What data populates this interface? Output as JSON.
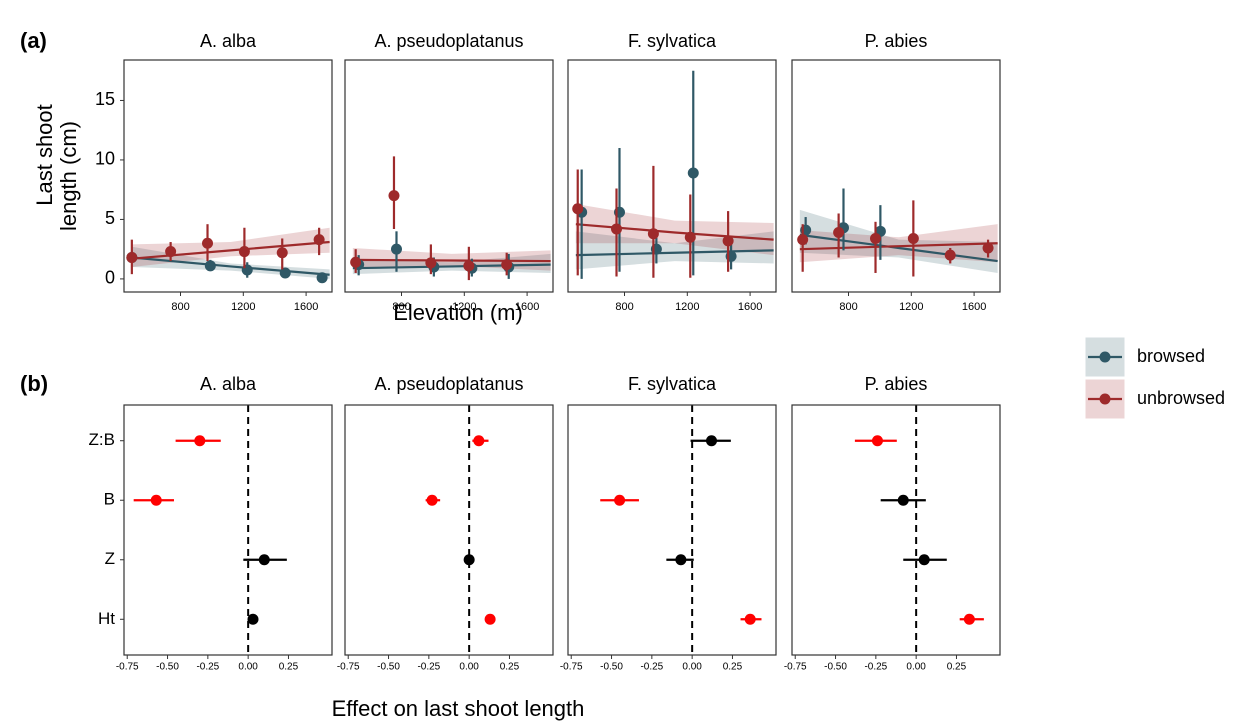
{
  "chart_data": [
    {
      "type": "line",
      "panel_label": "(a)",
      "x_label": "Elevation (m)",
      "y_label": [
        "Last shoot",
        "length (cm)"
      ],
      "xlim": [
        440,
        1765
      ],
      "xticks": [
        800,
        1200,
        1600
      ],
      "ylim": [
        -1.1,
        18.4
      ],
      "yticks": [
        0,
        5,
        10,
        15
      ],
      "facets": [
        {
          "title": "A. alba",
          "series": [
            {
              "name": "browsed",
              "color": "#2f5866",
              "x": [
                490,
                990,
                1225,
                1467,
                1702
              ],
              "values": [
                1.8,
                1.1,
                0.75,
                0.5,
                0.1
              ],
              "err_low": [
                1.4,
                0.7,
                0.1,
                0.3,
                0.0
              ],
              "err_high": [
                2.3,
                1.6,
                1.4,
                0.8,
                0.2
              ],
              "fit_x": [
                490,
                1120,
                1750
              ],
              "fit_values": [
                1.8,
                1.05,
                0.35
              ],
              "fit_low": [
                1.0,
                0.7,
                0.0
              ],
              "fit_high": [
                2.7,
                1.3,
                0.8
              ]
            },
            {
              "name": "unbrowsed",
              "color": "#9e2a2b",
              "x": [
                490,
                737,
                972,
                1207,
                1448,
                1683
              ],
              "values": [
                1.8,
                2.3,
                3.0,
                2.3,
                2.2,
                3.3
              ],
              "err_low": [
                0.4,
                1.5,
                1.5,
                0.9,
                0.8,
                2.0
              ],
              "err_high": [
                3.3,
                3.1,
                4.6,
                4.3,
                3.4,
                4.3
              ],
              "fit_x": [
                490,
                1120,
                1750
              ],
              "fit_values": [
                1.7,
                2.4,
                3.1
              ],
              "fit_low": [
                1.0,
                1.9,
                2.2
              ],
              "fit_high": [
                2.9,
                3.1,
                4.3
              ]
            }
          ]
        },
        {
          "title": "A. pseudoplatanus",
          "series": [
            {
              "name": "browsed",
              "color": "#2f5866",
              "x": [
                527,
                768,
                1006,
                1248,
                1483
              ],
              "values": [
                1.2,
                2.5,
                1.0,
                0.9,
                1.0
              ],
              "err_low": [
                0.3,
                0.6,
                0.2,
                0.2,
                0.0
              ],
              "err_high": [
                2.0,
                4.0,
                1.8,
                1.7,
                2.1
              ],
              "fit_x": [
                490,
                1120,
                1750
              ],
              "fit_values": [
                0.9,
                1.05,
                1.2
              ],
              "fit_low": [
                0.4,
                0.7,
                0.5
              ],
              "fit_high": [
                1.6,
                1.4,
                2.1
              ]
            },
            {
              "name": "unbrowsed",
              "color": "#9e2a2b",
              "x": [
                508,
                752,
                987,
                1229,
                1470
              ],
              "values": [
                1.4,
                7.0,
                1.35,
                1.1,
                1.2
              ],
              "err_low": [
                0.5,
                4.2,
                0.4,
                -0.1,
                0.3
              ],
              "err_high": [
                2.5,
                10.3,
                2.9,
                2.7,
                2.2
              ],
              "fit_x": [
                490,
                1120,
                1750
              ],
              "fit_values": [
                1.6,
                1.55,
                1.5
              ],
              "fit_low": [
                0.9,
                1.1,
                0.7
              ],
              "fit_high": [
                2.6,
                2.1,
                2.4
              ]
            }
          ]
        },
        {
          "title": "F. sylvatica",
          "series": [
            {
              "name": "browsed",
              "color": "#2f5866",
              "x": [
                527,
                768,
                1003,
                1238,
                1479
              ],
              "values": [
                5.6,
                5.6,
                2.5,
                8.9,
                1.9
              ],
              "err_low": [
                0.0,
                0.6,
                1.3,
                0.3,
                0.8
              ],
              "err_high": [
                9.2,
                11.0,
                3.5,
                17.5,
                3.0
              ],
              "fit_x": [
                490,
                1120,
                1750
              ],
              "fit_values": [
                2.0,
                2.2,
                2.4
              ],
              "fit_low": [
                0.8,
                1.5,
                1.3
              ],
              "fit_high": [
                4.0,
                3.0,
                4.0
              ]
            },
            {
              "name": "unbrowsed",
              "color": "#9e2a2b",
              "x": [
                502,
                749,
                984,
                1219,
                1460
              ],
              "values": [
                5.9,
                4.2,
                3.8,
                3.5,
                3.2
              ],
              "err_low": [
                0.3,
                0.2,
                0.1,
                0.1,
                0.6
              ],
              "err_high": [
                9.2,
                7.6,
                9.5,
                7.1,
                5.7
              ],
              "fit_x": [
                490,
                1120,
                1750
              ],
              "fit_values": [
                4.6,
                3.9,
                3.3
              ],
              "fit_low": [
                3.0,
                3.0,
                2.0
              ],
              "fit_high": [
                6.3,
                4.9,
                4.7
              ]
            }
          ]
        },
        {
          "title": "P. abies",
          "series": [
            {
              "name": "browsed",
              "color": "#2f5866",
              "x": [
                527,
                768,
                1003
              ],
              "values": [
                4.1,
                4.3,
                4.0
              ],
              "err_low": [
                2.9,
                2.4,
                1.6
              ],
              "err_high": [
                5.2,
                7.6,
                6.2
              ],
              "fit_x": [
                490,
                1120,
                1750
              ],
              "fit_values": [
                3.7,
                2.6,
                1.5
              ],
              "fit_low": [
                2.2,
                1.8,
                0.5
              ],
              "fit_high": [
                5.8,
                3.3,
                3.1
              ]
            },
            {
              "name": "unbrowsed",
              "color": "#9e2a2b",
              "x": [
                508,
                737,
                972,
                1213,
                1448,
                1689
              ],
              "values": [
                3.3,
                3.9,
                3.4,
                3.4,
                2.0,
                2.6
              ],
              "err_low": [
                0.6,
                1.8,
                0.5,
                0.2,
                1.3,
                1.8
              ],
              "err_high": [
                4.6,
                5.5,
                4.8,
                6.6,
                2.6,
                3.3
              ],
              "fit_x": [
                490,
                1120,
                1750
              ],
              "fit_values": [
                2.5,
                2.75,
                3.0
              ],
              "fit_low": [
                1.4,
                2.0,
                1.4
              ],
              "fit_high": [
                4.1,
                3.5,
                4.6
              ]
            }
          ]
        }
      ]
    },
    {
      "type": "dot",
      "panel_label": "(b)",
      "x_label": "Effect on last shoot length",
      "categories": [
        "Z:B",
        "B",
        "Z",
        "Ht"
      ],
      "xlim": [
        -0.77,
        0.52
      ],
      "xticks": [
        {
          "value": -0.75,
          "label": "-0.75"
        },
        {
          "value": -0.5,
          "label": "-0.50"
        },
        {
          "value": -0.25,
          "label": "-0.25"
        },
        {
          "value": 0,
          "label": "0.00"
        },
        {
          "value": 0.25,
          "label": "0.25"
        }
      ],
      "ref_line": 0,
      "facets": [
        {
          "title": "A. alba",
          "values": [
            -0.3,
            -0.57,
            0.1,
            0.03
          ],
          "err_low": [
            -0.45,
            -0.71,
            -0.03,
            0.0
          ],
          "err_high": [
            -0.17,
            -0.46,
            0.24,
            0.06
          ],
          "colors": [
            "#ff0000",
            "#ff0000",
            "#000000",
            "#000000"
          ]
        },
        {
          "title": "A. pseudoplatanus",
          "values": [
            0.06,
            -0.23,
            0.0,
            0.13
          ],
          "err_low": [
            0.02,
            -0.27,
            -0.01,
            0.12
          ],
          "err_high": [
            0.12,
            -0.18,
            0.01,
            0.14
          ],
          "colors": [
            "#ff0000",
            "#ff0000",
            "#000000",
            "#ff0000"
          ]
        },
        {
          "title": "F. sylvatica",
          "values": [
            0.12,
            -0.45,
            -0.07,
            0.36
          ],
          "err_low": [
            -0.01,
            -0.57,
            -0.16,
            0.3
          ],
          "err_high": [
            0.24,
            -0.33,
            0.01,
            0.43
          ],
          "colors": [
            "#000000",
            "#ff0000",
            "#000000",
            "#ff0000"
          ]
        },
        {
          "title": "P. abies",
          "values": [
            -0.24,
            -0.08,
            0.05,
            0.33
          ],
          "err_low": [
            -0.38,
            -0.22,
            -0.08,
            0.27
          ],
          "err_high": [
            -0.12,
            0.06,
            0.19,
            0.42
          ],
          "colors": [
            "#ff0000",
            "#000000",
            "#000000",
            "#ff0000"
          ]
        }
      ]
    }
  ]
}
